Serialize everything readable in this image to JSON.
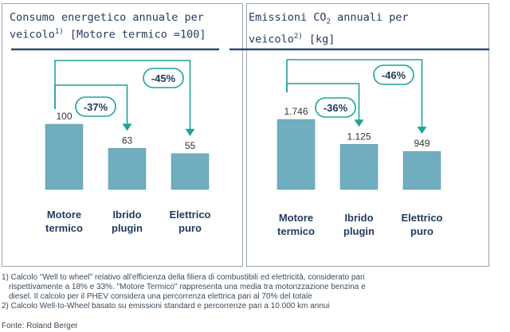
{
  "chart_data": [
    {
      "type": "bar",
      "title_line1": "Consumo energetico annuale per",
      "title_line2_pre": "veicolo",
      "title_sup": "1)",
      "title_line2_post": " [Motore termico =100]",
      "categories": [
        [
          "Motore",
          "termico"
        ],
        [
          "Ibrido",
          "plugin"
        ],
        [
          "Elettrico",
          "puro"
        ]
      ],
      "values": [
        100,
        63,
        55
      ],
      "value_labels": [
        "100",
        "63",
        "55"
      ],
      "ylim": [
        0,
        100
      ],
      "annotations": [
        {
          "from": 0,
          "to": 1,
          "label": "-37%"
        },
        {
          "from": 0,
          "to": 2,
          "label": "-45%"
        }
      ],
      "bar_color": "#70adc0",
      "arrow_color": "#1fa397"
    },
    {
      "type": "bar",
      "title_line1_pre": "Emissioni CO",
      "title_sub": "2",
      "title_line1_post": " annuali per",
      "title_line2_pre": "veicolo",
      "title_sup": "2)",
      "title_line2_post": " [kg]",
      "categories": [
        [
          "Motore",
          "termico"
        ],
        [
          "Ibrido",
          "plugin"
        ],
        [
          "Elettrico",
          "puro"
        ]
      ],
      "values": [
        1746,
        1125,
        949
      ],
      "value_labels": [
        "1.746",
        "1.125",
        "949"
      ],
      "ylim": [
        0,
        1746
      ],
      "annotations": [
        {
          "from": 0,
          "to": 1,
          "label": "-36%"
        },
        {
          "from": 0,
          "to": 2,
          "label": "-46%"
        }
      ],
      "bar_color": "#70adc0",
      "arrow_color": "#1fa397"
    }
  ],
  "footnotes": [
    "1) Calcolo \"Well to wheel\" relativo all'efficienza della filiera di combustibili ed elettricità, considerato pari",
    "rispettivamente a 18% e 33%. \"Motore Termico\" rappresenta una media tra motorizzazione benzina e",
    "diesel. Il calcolo per il PHEV considera una percorrenza elettrica pari al 70% del totale",
    "2) Calcolo Well-to-Wheel basato su emissioni standard e percorrenze pari a 10.000 km annui"
  ],
  "source": "Fonte: Roland Berger"
}
